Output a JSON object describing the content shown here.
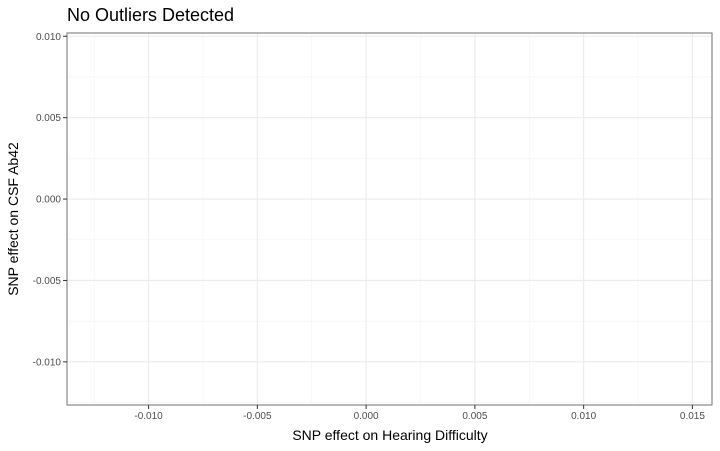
{
  "chart_data": {
    "type": "scatter",
    "title": "No Outliers Detected",
    "xlabel": "SNP effect on Hearing Difficulty",
    "ylabel": "SNP effect on CSF Ab42",
    "xlim": [
      -0.01375,
      0.0159
    ],
    "ylim": [
      -0.01265,
      0.0102
    ],
    "x_ticks": [
      -0.01,
      -0.005,
      0.0,
      0.005,
      0.01,
      0.015
    ],
    "x_tick_labels": [
      "-0.010",
      "-0.005",
      "0.000",
      "0.005",
      "0.010",
      "0.015"
    ],
    "y_ticks": [
      -0.01,
      -0.005,
      0.0,
      0.005,
      0.01
    ],
    "y_tick_labels": [
      "-0.010",
      "-0.005",
      "0.000",
      "0.005",
      "0.010"
    ],
    "points": [],
    "grid": true,
    "legend": "none"
  }
}
